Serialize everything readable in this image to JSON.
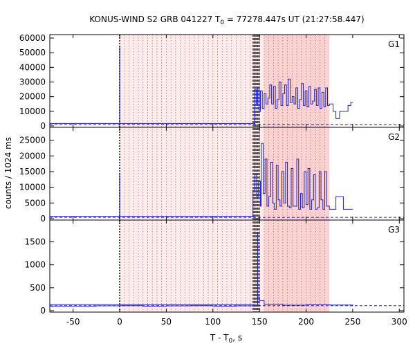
{
  "chart_data": {
    "type": "line",
    "title": "KONUS-WIND S2 GRB 041227 T₀ = 77278.447s UT (21:27:58.447)",
    "title_parts": {
      "prefix": "KONUS-WIND S2 GRB 041227 T",
      "subscript": "0",
      "suffix": " = 77278.447s UT (21:27:58.447)"
    },
    "xlabel_parts": {
      "prefix": "T - T",
      "subscript": "0",
      "suffix": ", s"
    },
    "ylabel": "counts / 1024 ms",
    "xlim": [
      -75,
      305
    ],
    "xticks": [
      -50,
      0,
      50,
      100,
      150,
      200,
      250,
      300
    ],
    "colors": {
      "series": "#2020c0",
      "background_line": "#2020c0",
      "shade": "#fde0e0",
      "dotted": "#cc6666",
      "trigger": "#444444"
    },
    "markers": {
      "trigger_line": 0,
      "dark_band": [
        143,
        150
      ],
      "shaded_interval": [
        0,
        225
      ],
      "highlight_interval": [
        155,
        225
      ]
    },
    "panels": [
      {
        "name": "G1",
        "ylim": [
          0,
          60000
        ],
        "yticks": [
          0,
          10000,
          20000,
          30000,
          40000,
          50000,
          60000
        ],
        "background": 1000,
        "spike": {
          "x": 0,
          "value": 54000
        },
        "segments": [
          {
            "x": [
              145,
              146.5,
              148,
              149.5,
              151,
              153,
              155,
              157,
              159,
              161,
              163,
              165,
              167,
              169,
              171,
              173,
              175,
              177,
              179,
              181,
              183,
              185,
              187,
              189,
              191,
              193,
              195,
              197,
              199,
              201,
              203,
              205,
              207,
              209,
              211,
              213,
              215,
              217,
              219,
              221,
              223,
              225,
              229,
              232,
              236,
              240,
              245,
              248,
              250
            ],
            "values": [
              25000,
              15000,
              26000,
              10000,
              24000,
              12000,
              22000,
              15000,
              19000,
              28000,
              15000,
              27000,
              12000,
              18000,
              30000,
              14000,
              22000,
              28000,
              14000,
              32000,
              16000,
              20000,
              15000,
              26000,
              12000,
              18000,
              29000,
              14000,
              24000,
              13000,
              27000,
              15000,
              17000,
              25000,
              14000,
              26000,
              12000,
              23000,
              13000,
              26000,
              14000,
              15000,
              10000,
              5000,
              10000,
              10000,
              14000,
              16000,
              16000
            ]
          }
        ]
      },
      {
        "name": "G2",
        "ylim": [
          0,
          28000
        ],
        "yticks": [
          0,
          5000,
          10000,
          15000,
          20000,
          25000
        ],
        "background": 400,
        "spike": {
          "x": 0,
          "value": 14500
        },
        "segments": [
          {
            "x": [
              143,
              145,
              147,
              149,
              151,
              152,
              154,
              156,
              158,
              160,
              162,
              164,
              166,
              168,
              170,
              172,
              174,
              176,
              178,
              180,
              182,
              184,
              186,
              188,
              190,
              192,
              194,
              196,
              198,
              200,
              202,
              204,
              206,
              208,
              210,
              212,
              214,
              216,
              218,
              220,
              222,
              225,
              232,
              240,
              246,
              250
            ],
            "values": [
              9000,
              14000,
              7000,
              12000,
              4000,
              24000,
              8000,
              19000,
              4000,
              7000,
              18000,
              5000,
              3000,
              17000,
              6000,
              4000,
              15000,
              5000,
              18000,
              4000,
              3500,
              16000,
              4000,
              4000,
              19000,
              3000,
              8000,
              3500,
              15000,
              4500,
              16000,
              3000,
              6000,
              14000,
              3000,
              3500,
              15000,
              6000,
              3000,
              15000,
              4000,
              3000,
              7000,
              3000,
              3000,
              3000
            ]
          }
        ]
      },
      {
        "name": "G3",
        "ylim": [
          0,
          1900
        ],
        "yticks": [
          0,
          500,
          1000,
          1500
        ],
        "background": 110,
        "spike": {
          "x": 148,
          "value": 1700
        },
        "segments": [
          {
            "x": [
              -75,
              -50,
              -25,
              0,
              25,
              50,
              75,
              100,
              125,
              145,
              148,
              150,
              155,
              175,
              200,
              225,
              250
            ],
            "values": [
              100,
              100,
              105,
              110,
              100,
              105,
              110,
              100,
              105,
              110,
              300,
              220,
              140,
              120,
              130,
              125,
              110
            ]
          }
        ]
      }
    ]
  }
}
